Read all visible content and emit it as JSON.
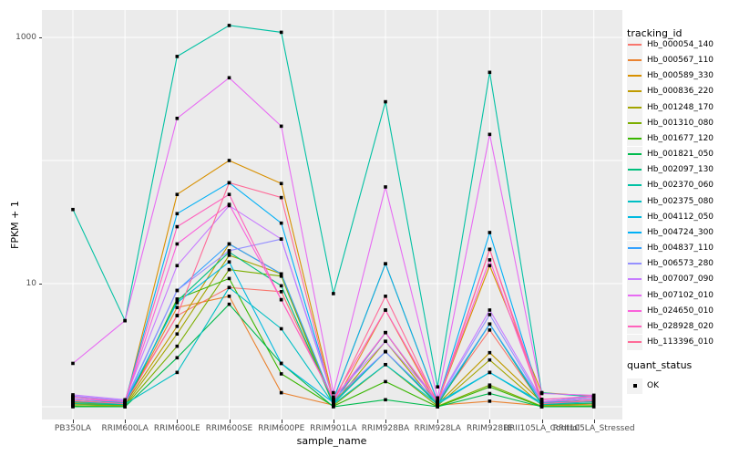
{
  "chart_data": {
    "type": "line",
    "title": "",
    "xlabel": "sample_name",
    "ylabel": "FPKM + 1",
    "y_scale": "log10",
    "ylim": [
      0.82,
      1660
    ],
    "grid": true,
    "legend_position": "right",
    "y_ticks": [
      {
        "value": 1000,
        "label": "1000"
      },
      {
        "value": 10,
        "label": "10"
      }
    ],
    "y_gridline_values": [
      1,
      10,
      100,
      1000
    ],
    "categories": [
      "PB350LA",
      "RRIM600LA",
      "RRIM600LE",
      "RRIM600SE",
      "RRIM600PE",
      "RRIM901LA",
      "RRIM928BA",
      "RRIM928LA",
      "RRIM928LE",
      "RRII105LA_Control",
      "RRII105LA_Stressed"
    ],
    "series": [
      {
        "name": "Hb_000054_140",
        "color": "#F8766D",
        "values": [
          1.1,
          1.08,
          5.5,
          9.3,
          8.6,
          1.1,
          2.8,
          1.08,
          4.2,
          1.05,
          1.1
        ]
      },
      {
        "name": "Hb_000567_110",
        "color": "#EA8331",
        "values": [
          1.05,
          1.03,
          6.4,
          7.9,
          1.3,
          1.03,
          6.1,
          1.03,
          1.11,
          1.02,
          1.05
        ]
      },
      {
        "name": "Hb_000589_330",
        "color": "#D89000",
        "values": [
          1.12,
          1.06,
          53,
          100,
          65,
          1.15,
          14.5,
          1.1,
          14,
          1.3,
          1.22
        ]
      },
      {
        "name": "Hb_000836_220",
        "color": "#C09B00",
        "values": [
          1.08,
          1.05,
          4.5,
          21,
          12,
          1.08,
          4.0,
          1.05,
          2.75,
          1.09,
          1.15
        ]
      },
      {
        "name": "Hb_001248_170",
        "color": "#A3A500",
        "values": [
          1.05,
          1.02,
          3.9,
          17,
          12,
          1.05,
          3.4,
          1.02,
          2.4,
          1.03,
          1.06
        ]
      },
      {
        "name": "Hb_001310_080",
        "color": "#7CAE00",
        "values": [
          1.02,
          1.01,
          3.1,
          13,
          11.5,
          1.02,
          2.2,
          1.01,
          1.5,
          1.01,
          1.02
        ]
      },
      {
        "name": "Hb_001677_120",
        "color": "#39B600",
        "values": [
          1.01,
          1.0,
          7.5,
          11,
          1.85,
          1.01,
          1.6,
          1.0,
          1.45,
          1.0,
          1.01
        ]
      },
      {
        "name": "Hb_001821_050",
        "color": "#00BB4E",
        "values": [
          1.0,
          1.0,
          2.5,
          6.8,
          2.25,
          1.0,
          1.14,
          1.0,
          1.28,
          1.0,
          1.0
        ]
      },
      {
        "name": "Hb_002097_130",
        "color": "#00BF7D",
        "values": [
          1.06,
          1.04,
          7.2,
          18,
          9.6,
          1.06,
          2.8,
          1.04,
          4.7,
          1.04,
          1.07
        ]
      },
      {
        "name": "Hb_002370_060",
        "color": "#00C1A3",
        "values": [
          40,
          5.0,
          700,
          1250,
          1100,
          8.3,
          300,
          1.45,
          520,
          1.3,
          1.2
        ]
      },
      {
        "name": "Hb_002375_080",
        "color": "#00BFC4",
        "values": [
          1.1,
          1.05,
          1.9,
          9.3,
          4.3,
          1.05,
          2.2,
          1.05,
          1.9,
          1.05,
          1.1
        ]
      },
      {
        "name": "Hb_004112_050",
        "color": "#00BAE0",
        "values": [
          1.15,
          1.08,
          7.0,
          15,
          2.25,
          1.08,
          2.8,
          1.08,
          1.9,
          1.08,
          1.12
        ]
      },
      {
        "name": "Hb_004724_300",
        "color": "#00B0F6",
        "values": [
          1.2,
          1.1,
          37,
          66,
          31,
          1.15,
          14.5,
          1.1,
          26,
          1.1,
          1.2
        ]
      },
      {
        "name": "Hb_004837_110",
        "color": "#35A2FF",
        "values": [
          1.16,
          1.09,
          8.8,
          21,
          12,
          1.1,
          4.0,
          1.09,
          4.7,
          1.09,
          1.16
        ]
      },
      {
        "name": "Hb_006573_280",
        "color": "#9590FF",
        "values": [
          1.22,
          1.12,
          8.8,
          18.5,
          23,
          1.15,
          2.8,
          1.1,
          5.6,
          1.1,
          1.2
        ]
      },
      {
        "name": "Hb_007007_090",
        "color": "#C77CFF",
        "values": [
          1.25,
          1.14,
          14,
          43,
          23,
          1.2,
          3.4,
          1.12,
          6.1,
          1.14,
          1.22
        ]
      },
      {
        "name": "Hb_007102_010",
        "color": "#E76BF3",
        "values": [
          2.25,
          5.0,
          220,
          470,
          190,
          1.3,
          61,
          1.18,
          163,
          1.28,
          1.24
        ]
      },
      {
        "name": "Hb_024650_010",
        "color": "#FA62DB",
        "values": [
          1.15,
          1.1,
          21,
          44,
          7.4,
          1.15,
          4.0,
          1.1,
          15.6,
          1.1,
          1.15
        ]
      },
      {
        "name": "Hb_028928_020",
        "color": "#FF62BC",
        "values": [
          1.2,
          1.1,
          29,
          53,
          7.4,
          1.16,
          6.1,
          1.1,
          19,
          1.15,
          1.2
        ]
      },
      {
        "name": "Hb_113396_010",
        "color": "#FF6A98",
        "values": [
          1.12,
          1.06,
          5.5,
          66,
          50,
          1.1,
          7.9,
          1.06,
          19,
          1.06,
          1.12
        ]
      }
    ],
    "legend": {
      "series_title": "tracking_id",
      "status_title": "quant_status",
      "status_items": [
        {
          "label": "OK",
          "marker": "black-square"
        }
      ]
    },
    "colors": {
      "panel_bg": "#EBEBEB",
      "gridline": "#FFFFFF",
      "axis_text": "#4D4D4D",
      "title_text": "#000000",
      "point": "#000000",
      "legend_key_bg": "#F2F2F2"
    }
  }
}
